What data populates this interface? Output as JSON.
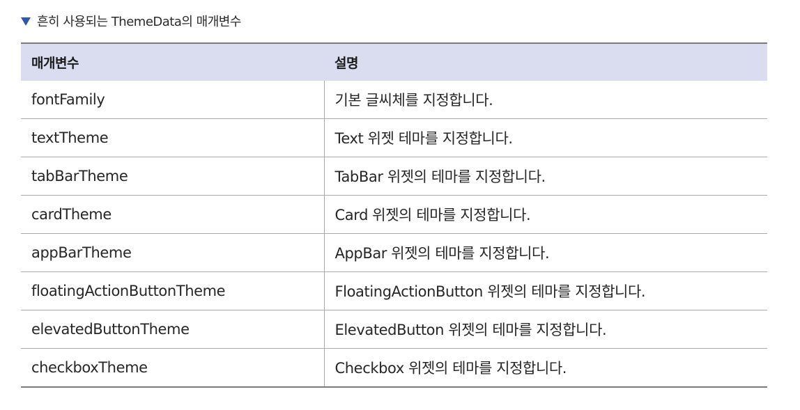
{
  "caption": {
    "marker": "▼",
    "text": "흔히 사용되는 ThemeData의 매개변수"
  },
  "table": {
    "headers": [
      "매개변수",
      "설명"
    ],
    "rows": [
      {
        "param": "fontFamily",
        "description": "기본 글씨체를 지정합니다."
      },
      {
        "param": "textTheme",
        "description": "Text 위젯 테마를 지정합니다."
      },
      {
        "param": "tabBarTheme",
        "description": "TabBar 위젯의 테마를 지정합니다."
      },
      {
        "param": "cardTheme",
        "description": "Card 위젯의 테마를 지정합니다."
      },
      {
        "param": "appBarTheme",
        "description": "AppBar 위젯의 테마를 지정합니다."
      },
      {
        "param": "floatingActionButtonTheme",
        "description": "FloatingActionButton 위젯의 테마를 지정합니다."
      },
      {
        "param": "elevatedButtonTheme",
        "description": "ElevatedButton 위젯의 테마를 지정합니다."
      },
      {
        "param": "checkboxTheme",
        "description": "Checkbox 위젯의 테마를 지정합니다."
      }
    ]
  },
  "colors": {
    "marker": "#2f5aa8",
    "header_background": "#d9ddef",
    "rule": "#7a7a7a",
    "row_divider": "#a9a9a9"
  }
}
